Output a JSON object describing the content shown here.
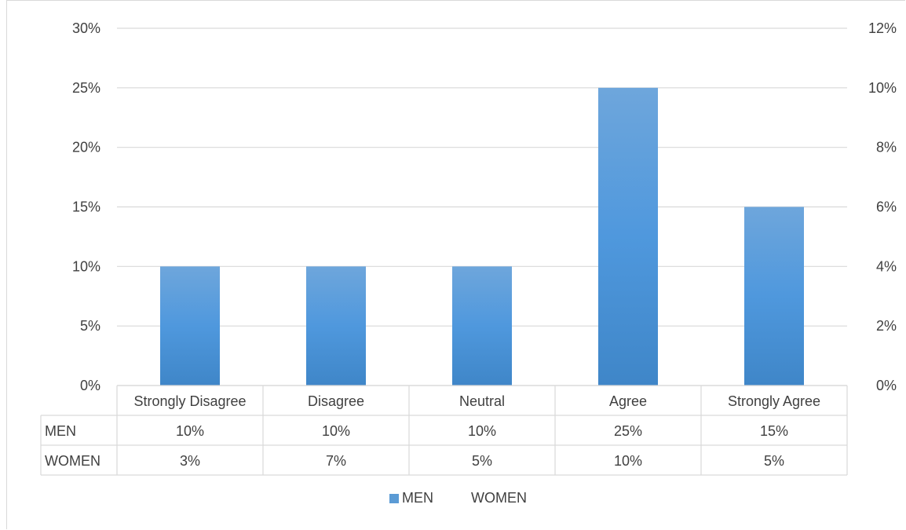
{
  "chart_data": {
    "type": "bar",
    "categories": [
      "Strongly Disagree",
      "Disagree",
      "Neutral",
      "Agree",
      "Strongly Agree"
    ],
    "series": [
      {
        "name": "MEN",
        "values": [
          0.1,
          0.1,
          0.1,
          0.25,
          0.15
        ],
        "color": "#5b9bd5",
        "axis": "left",
        "labels": [
          "10%",
          "10%",
          "10%",
          "25%",
          "15%"
        ]
      },
      {
        "name": "WOMEN",
        "values": [
          0.03,
          0.07,
          0.05,
          0.1,
          0.05
        ],
        "axis": "right",
        "labels": [
          "3%",
          "7%",
          "5%",
          "10%",
          "5%"
        ]
      }
    ],
    "y_left": {
      "min": 0,
      "max": 0.3,
      "ticks": [
        "0%",
        "5%",
        "10%",
        "15%",
        "20%",
        "25%",
        "30%"
      ]
    },
    "y_right": {
      "min": 0,
      "max": 0.12,
      "ticks": [
        "0%",
        "2%",
        "4%",
        "6%",
        "8%",
        "10%",
        "12%"
      ]
    },
    "grid": true,
    "legend_position": "bottom",
    "data_table": true,
    "gridline_color": "#d9d9d9"
  }
}
